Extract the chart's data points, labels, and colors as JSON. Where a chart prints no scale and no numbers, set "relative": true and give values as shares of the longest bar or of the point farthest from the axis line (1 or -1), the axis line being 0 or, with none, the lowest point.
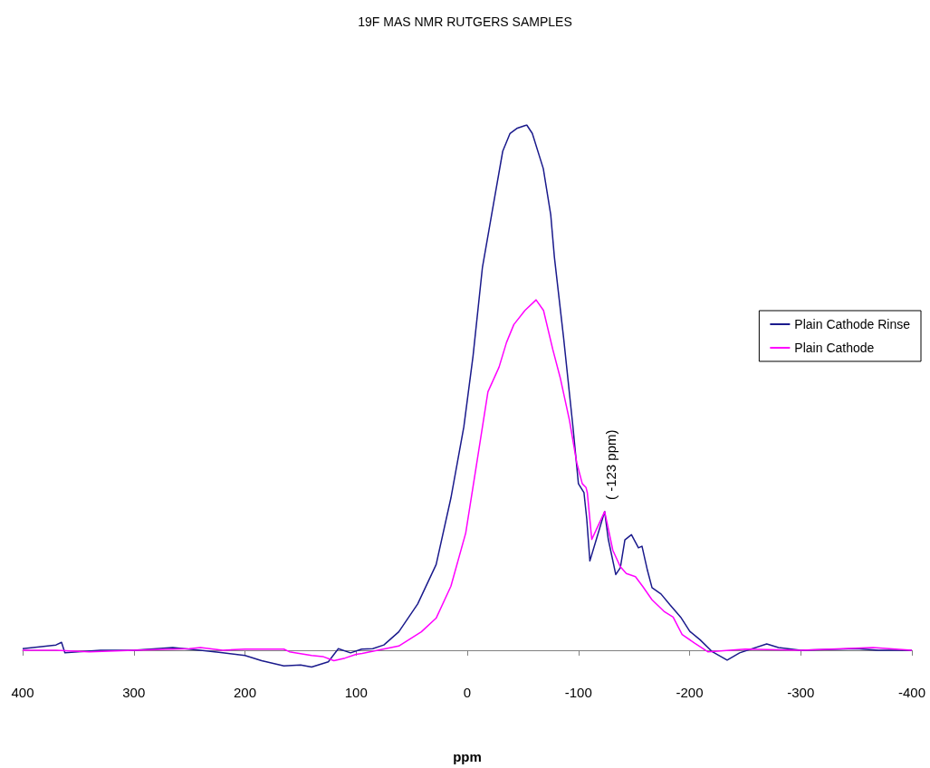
{
  "chart_data": {
    "type": "line",
    "title": "19F MAS NMR RUTGERS SAMPLES",
    "xlabel": "ppm",
    "relative": true,
    "xlim": [
      400,
      -400
    ],
    "xticks": [
      400,
      300,
      200,
      100,
      0,
      -100,
      -200,
      -300,
      -400
    ],
    "legend": "right",
    "grid": false,
    "marker": "none",
    "line_style": "solid",
    "annotations": [
      "( -123 ppm)"
    ],
    "series": [
      {
        "name": "Plain Cathode Rinse",
        "color": "#1a1a8c",
        "x": [
          400,
          370,
          365,
          362,
          330,
          300,
          265,
          240,
          220,
          200,
          185,
          165,
          150,
          140,
          125,
          116,
          105,
          95,
          85,
          75,
          61.6,
          44.6,
          28,
          14.7,
          3.1,
          -5.2,
          -13.6,
          -21.9,
          -31.9,
          -38.5,
          -45.1,
          -53.5,
          -58.5,
          -68.4,
          -75.1,
          -78.4,
          -86.7,
          -95.1,
          -100,
          -105,
          -107.5,
          -110.3,
          -115.4,
          -123.6,
          -126.8,
          -133.6,
          -137.7,
          -141.8,
          -147.7,
          -154,
          -157.2,
          -162.1,
          -166.2,
          -174.3,
          -182.5,
          -192,
          -200.2,
          -209.4,
          -220.5,
          -233.8,
          -245,
          -269.4,
          -280,
          -300,
          -350,
          -370,
          -400
        ],
        "values": [
          0.003,
          0.01,
          0.015,
          -0.005,
          0,
          0,
          0.005,
          0,
          -0.005,
          -0.01,
          -0.02,
          -0.03,
          -0.028,
          -0.032,
          -0.022,
          0.003,
          -0.005,
          0.002,
          0.003,
          0.01,
          0.035,
          0.088,
          0.163,
          0.29,
          0.425,
          0.56,
          0.728,
          0.829,
          0.95,
          0.984,
          0.994,
          1,
          0.984,
          0.917,
          0.829,
          0.748,
          0.594,
          0.425,
          0.317,
          0.3,
          0.25,
          0.17,
          0.206,
          0.264,
          0.212,
          0.144,
          0.157,
          0.21,
          0.22,
          0.195,
          0.198,
          0.152,
          0.119,
          0.107,
          0.086,
          0.063,
          0.036,
          0.02,
          -0.003,
          -0.019,
          -0.005,
          0.012,
          0.005,
          0,
          0.003,
          0,
          0
        ]
      },
      {
        "name": "Plain Cathode",
        "color": "#ff00ff",
        "x": [
          400,
          370,
          340,
          300,
          250,
          240,
          220,
          200,
          165,
          160,
          140,
          130,
          120,
          110,
          100,
          94.5,
          61.6,
          41.3,
          28,
          14.7,
          1.4,
          -8.6,
          -18.6,
          -28.6,
          -35.3,
          -41.9,
          -51.9,
          -61.9,
          -68.6,
          -76.9,
          -83.6,
          -91.9,
          -98.5,
          -103.5,
          -106.8,
          -108,
          -112,
          -123.6,
          -131,
          -137.7,
          -143.1,
          -151.3,
          -158,
          -166.2,
          -177,
          -185.2,
          -193.3,
          -204.2,
          -216.4,
          -250,
          -300,
          -365,
          -400
        ],
        "values": [
          0,
          0,
          -0.003,
          0,
          0.003,
          0.005,
          0,
          0.002,
          0.002,
          -0.003,
          -0.01,
          -0.012,
          -0.02,
          -0.015,
          -0.008,
          -0.006,
          0.008,
          0.035,
          0.061,
          0.122,
          0.223,
          0.357,
          0.492,
          0.539,
          0.586,
          0.62,
          0.647,
          0.667,
          0.647,
          0.573,
          0.519,
          0.438,
          0.357,
          0.317,
          0.31,
          0.3,
          0.211,
          0.264,
          0.19,
          0.159,
          0.146,
          0.14,
          0.121,
          0.096,
          0.074,
          0.063,
          0.03,
          0.014,
          -0.003,
          0.002,
          0,
          0.005,
          0
        ]
      }
    ]
  }
}
